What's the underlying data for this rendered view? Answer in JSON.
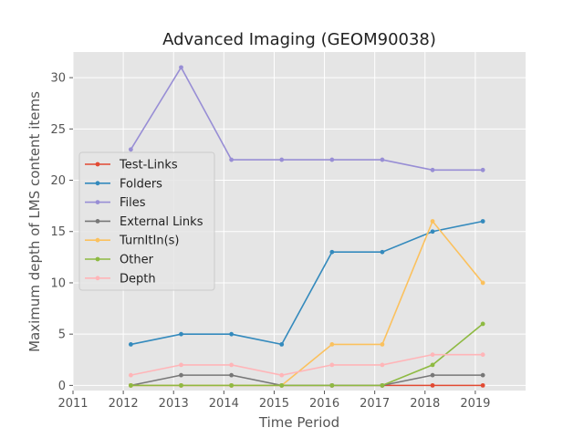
{
  "chart_data": {
    "type": "line",
    "title": "Advanced Imaging (GEOM90038)",
    "xlabel": "Time Period",
    "ylabel": "Maximum depth of LMS content items",
    "xlim": [
      2011,
      2020
    ],
    "ylim": [
      -0.5,
      32.5
    ],
    "x_ticks": [
      "2011",
      "2012",
      "2013",
      "2014",
      "2015",
      "2016",
      "2017",
      "2018",
      "2019"
    ],
    "y_ticks": [
      "0",
      "5",
      "10",
      "15",
      "20",
      "25",
      "30"
    ],
    "grid": true,
    "legend_position": "center-left",
    "x": [
      2012.15,
      2013.15,
      2014.15,
      2015.15,
      2016.15,
      2017.15,
      2018.15,
      2019.15
    ],
    "series": [
      {
        "name": "Test-Links",
        "color": "#e24a33",
        "values": [
          0,
          0,
          0,
          0,
          0,
          0,
          0,
          0
        ]
      },
      {
        "name": "Folders",
        "color": "#348abd",
        "values": [
          4,
          5,
          5,
          4,
          13,
          13,
          15,
          16
        ]
      },
      {
        "name": "Files",
        "color": "#988ed5",
        "values": [
          23,
          31,
          22,
          22,
          22,
          22,
          21,
          21
        ]
      },
      {
        "name": "External Links",
        "color": "#777777",
        "values": [
          0,
          1,
          1,
          0,
          0,
          0,
          1,
          1
        ]
      },
      {
        "name": "TurnItIn(s)",
        "color": "#fbc15e",
        "values": [
          0,
          0,
          0,
          0,
          4,
          4,
          16,
          10
        ]
      },
      {
        "name": "Other",
        "color": "#8eba42",
        "values": [
          0,
          0,
          0,
          0,
          0,
          0,
          2,
          6
        ]
      },
      {
        "name": "Depth",
        "color": "#ffb5b8",
        "values": [
          1,
          2,
          2,
          1,
          2,
          2,
          3,
          3
        ]
      }
    ]
  }
}
